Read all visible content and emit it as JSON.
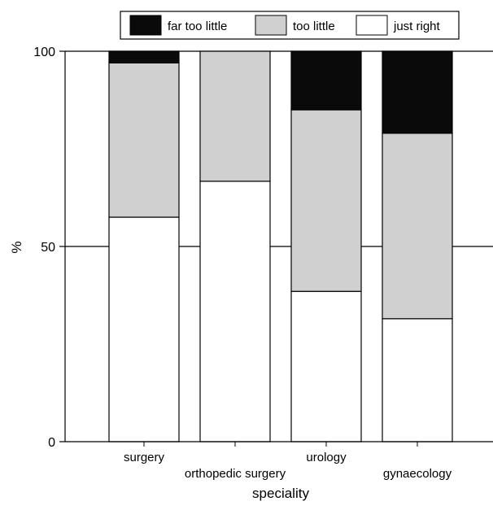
{
  "chart_data": {
    "type": "bar",
    "stacked": true,
    "categories": [
      "surgery",
      "orthopedic surgery",
      "urology",
      "gynaecology"
    ],
    "series": [
      {
        "name": "just right",
        "color": "#ffffff",
        "values": [
          57.5,
          66.7,
          38.5,
          31.5
        ]
      },
      {
        "name": "too little",
        "color": "#d0d0d0",
        "values": [
          39.5,
          33.3,
          46.5,
          47.5
        ]
      },
      {
        "name": "far too little",
        "color": "#0a0a0a",
        "values": [
          3.0,
          0.0,
          15.0,
          21.0
        ]
      }
    ],
    "legend_order": [
      "far too little",
      "too little",
      "just right"
    ],
    "xlabel": "speciality",
    "ylabel": "%",
    "ylim": [
      0,
      100
    ],
    "yticks": [
      0,
      50,
      100
    ],
    "gridlines": [
      50,
      100
    ],
    "legend_position": "top"
  }
}
